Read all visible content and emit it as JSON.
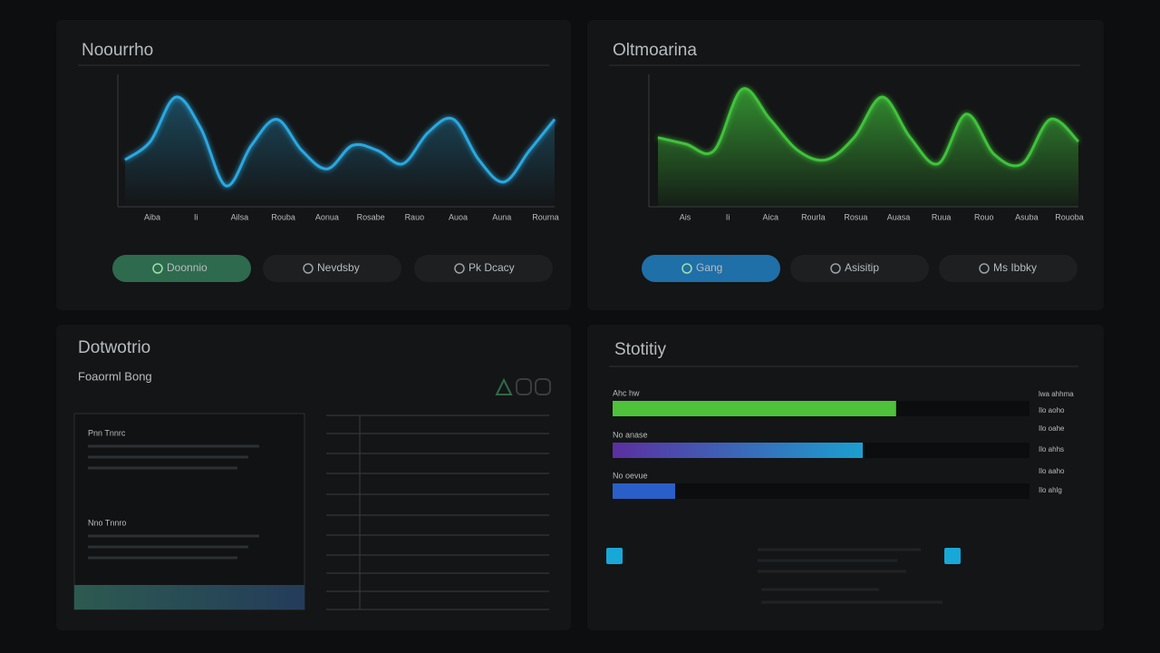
{
  "line_panels": [
    {
      "title": "Noourrho",
      "chart": {
        "type": "line",
        "color": "#2aa8e0",
        "ylim": [
          0,
          100
        ],
        "values": [
          36,
          50,
          84,
          60,
          16,
          47,
          67,
          43,
          29,
          47,
          43,
          33,
          57,
          67,
          36,
          19,
          43,
          67
        ]
      },
      "x_labels": [
        "Aiba",
        "Ii",
        "Ailsa",
        "Rouba",
        "Aonua",
        "Rosabe",
        "Rauo",
        "Auoa",
        "Auna",
        "Rourna"
      ],
      "buttons": [
        "Doonnio",
        "Nevdsby",
        "Pk Dcacy"
      ]
    },
    {
      "title": "Oltmoarina",
      "chart": {
        "type": "area",
        "color": "#3fc23a",
        "ylim": [
          0,
          100
        ],
        "values": [
          53,
          48,
          43,
          90,
          67,
          43,
          36,
          53,
          84,
          53,
          33,
          71,
          40,
          33,
          67,
          50
        ]
      },
      "x_labels": [
        "Ais",
        "Ii",
        "Aica",
        "Rourla",
        "Rosua",
        "Auasa",
        "Ruua",
        "Rouo",
        "Asuba",
        "Rouoba"
      ],
      "buttons": [
        "Gang",
        "Asisitip",
        "Ms Ibbky"
      ]
    }
  ],
  "notes_panel": {
    "title": "Dotwotrio",
    "subtitle": "Foaorml Bong",
    "card": {
      "headings": [
        "Pnn Tnnrc",
        "Nno Tnnro"
      ]
    }
  },
  "bars_panel": {
    "title": "Stotitiy",
    "xlim": [
      0,
      100
    ],
    "bars": [
      {
        "label": "Ahc hw",
        "value": 68,
        "color": "#4ec23a"
      },
      {
        "label": "No anase",
        "value": 60,
        "color": "#1b8fc8"
      },
      {
        "label": "No oevue",
        "value": 15,
        "color": "#2a5fc8"
      }
    ],
    "side_labels": [
      "lwa ahhma",
      "Ilo aoho",
      "Ilo oahe",
      "Ilo ahhs",
      "Ilo aaho",
      "Ilo ahlg"
    ]
  }
}
